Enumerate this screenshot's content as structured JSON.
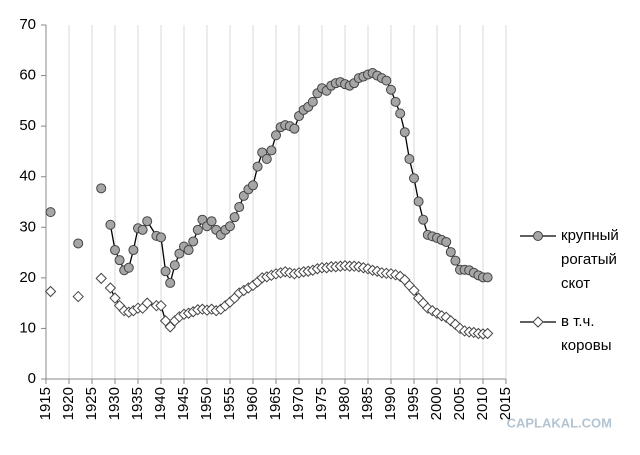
{
  "chart_data": {
    "type": "line",
    "x": [
      1916,
      1917,
      1922,
      1923,
      1927,
      1928,
      1929,
      1930,
      1931,
      1932,
      1933,
      1934,
      1935,
      1936,
      1937,
      1939,
      1940,
      1941,
      1942,
      1943,
      1944,
      1945,
      1946,
      1947,
      1948,
      1949,
      1950,
      1951,
      1952,
      1953,
      1954,
      1955,
      1956,
      1957,
      1958,
      1959,
      1960,
      1961,
      1962,
      1963,
      1964,
      1965,
      1966,
      1967,
      1968,
      1969,
      1970,
      1971,
      1972,
      1973,
      1974,
      1975,
      1976,
      1977,
      1978,
      1979,
      1980,
      1981,
      1982,
      1983,
      1984,
      1985,
      1986,
      1987,
      1988,
      1989,
      1990,
      1991,
      1992,
      1993,
      1994,
      1995,
      1996,
      1997,
      1998,
      1999,
      2000,
      2001,
      2002,
      2003,
      2004,
      2005,
      2006,
      2007,
      2008,
      2009,
      2010,
      2011
    ],
    "series": [
      {
        "name": "крупный рогатый скот",
        "color": "#a6a6a6",
        "marker": "circle",
        "values": [
          33.0,
          null,
          26.8,
          null,
          37.7,
          null,
          30.5,
          25.5,
          23.5,
          21.5,
          22.0,
          25.5,
          29.8,
          29.5,
          31.2,
          28.3,
          28.0,
          21.3,
          19.0,
          22.5,
          24.8,
          26.2,
          25.5,
          27.2,
          29.5,
          31.5,
          30.2,
          31.2,
          29.5,
          28.5,
          29.5,
          30.2,
          32.0,
          34.0,
          36.2,
          37.5,
          38.3,
          42.0,
          44.8,
          43.5,
          45.2,
          48.2,
          49.8,
          50.2,
          50.0,
          49.5,
          52.0,
          53.2,
          53.8,
          54.8,
          56.5,
          57.5,
          57.0,
          58.0,
          58.5,
          58.7,
          58.3,
          58.0,
          58.5,
          59.5,
          59.8,
          60.2,
          60.5,
          60.0,
          59.5,
          59.0,
          57.2,
          54.8,
          52.5,
          48.8,
          43.5,
          39.7,
          35.1,
          31.5,
          28.5,
          28.2,
          27.9,
          27.5,
          27.1,
          25.1,
          23.4,
          21.6,
          21.6,
          21.5,
          21.0,
          20.5,
          20.1,
          20.1
        ]
      },
      {
        "name": "в т.ч. коровы",
        "color": "#ffffff",
        "marker": "diamond",
        "values": [
          17.3,
          null,
          16.3,
          null,
          19.9,
          null,
          18.0,
          16.0,
          14.5,
          13.5,
          13.2,
          13.5,
          14.0,
          14.0,
          15.0,
          14.5,
          14.5,
          11.5,
          10.3,
          11.5,
          12.3,
          12.8,
          13.0,
          13.3,
          13.7,
          13.8,
          13.6,
          13.8,
          13.5,
          13.8,
          14.5,
          15.2,
          16.0,
          17.0,
          17.5,
          18.0,
          18.5,
          19.2,
          20.0,
          20.2,
          20.5,
          20.8,
          21.0,
          21.2,
          21.0,
          20.8,
          21.0,
          21.2,
          21.3,
          21.5,
          21.8,
          22.0,
          22.0,
          22.2,
          22.2,
          22.3,
          22.4,
          22.3,
          22.3,
          22.2,
          22.0,
          21.8,
          21.5,
          21.3,
          21.0,
          20.9,
          20.8,
          20.6,
          20.3,
          19.6,
          18.5,
          17.5,
          16.0,
          15.0,
          14.0,
          13.5,
          13.0,
          12.5,
          12.2,
          11.5,
          10.8,
          10.0,
          9.5,
          9.3,
          9.2,
          9.0,
          8.9,
          9.0
        ]
      }
    ],
    "xlim": [
      1915,
      2015
    ],
    "xticks": [
      1915,
      1920,
      1925,
      1930,
      1935,
      1940,
      1945,
      1950,
      1955,
      1960,
      1965,
      1970,
      1975,
      1980,
      1985,
      1990,
      1995,
      2000,
      2005,
      2010,
      2015
    ],
    "ylim": [
      0,
      70
    ],
    "yticks": [
      0,
      10,
      20,
      30,
      40,
      50,
      60,
      70
    ],
    "grid": true,
    "legend": "right",
    "watermark": "CAPLAKAL.COM"
  }
}
